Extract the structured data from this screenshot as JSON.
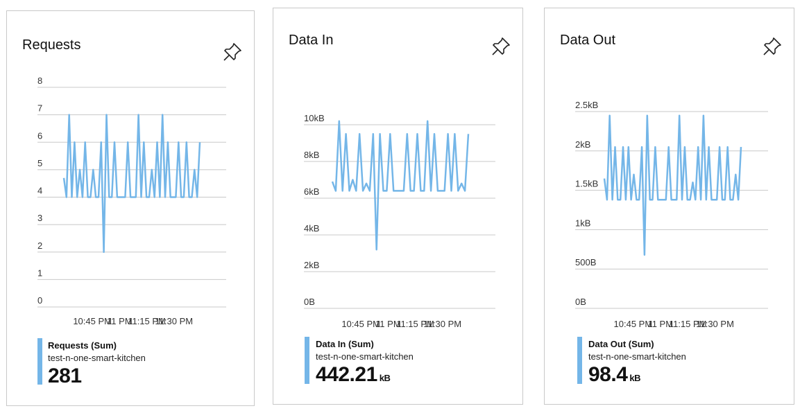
{
  "colors": {
    "series": "#74b6e8",
    "grid": "#c8c8c8",
    "tick": "#333333"
  },
  "pin_icon": "pin-icon",
  "chart_data": [
    {
      "type": "line",
      "title": "Requests",
      "x_ticks": [
        "10:45 PM",
        "11 PM",
        "11:15 PM",
        "11:30 PM"
      ],
      "y_ticks": [
        "0",
        "1",
        "2",
        "3",
        "4",
        "5",
        "6",
        "7",
        "8"
      ],
      "ylim": [
        0,
        8
      ],
      "series": [
        {
          "name": "Requests (Sum)",
          "values": [
            4.7,
            4,
            7,
            4,
            6,
            4,
            5,
            4,
            6,
            4,
            4,
            5,
            4,
            4,
            6,
            2,
            7,
            4,
            4,
            6,
            4,
            4,
            4,
            4,
            6,
            4,
            4,
            4,
            7,
            4,
            6,
            4,
            4,
            5,
            4,
            6,
            4,
            7,
            4,
            6,
            4,
            4,
            4,
            6,
            4,
            4,
            6,
            4,
            4,
            5,
            4,
            6
          ]
        }
      ],
      "legend": {
        "name": "Requests (Sum)",
        "resource": "test-n-one-smart-kitchen",
        "value": "281",
        "unit": ""
      }
    },
    {
      "type": "line",
      "title": "Data In",
      "x_ticks": [
        "10:45 PM",
        "11 PM",
        "11:15 PM",
        "11:30 PM"
      ],
      "y_ticks": [
        "0B",
        "2kB",
        "4kB",
        "6kB",
        "8kB",
        "10kB"
      ],
      "ylim": [
        0,
        10
      ],
      "series": [
        {
          "name": "Data In (Sum)",
          "values": [
            6.9,
            6.4,
            10.2,
            6.4,
            9.5,
            6.4,
            7,
            6.4,
            9.5,
            6.4,
            6.8,
            6.4,
            9.5,
            3.2,
            9.5,
            6.4,
            6.4,
            9.5,
            6.4,
            6.4,
            6.4,
            6.4,
            9.5,
            6.4,
            6.4,
            9.5,
            6.4,
            6.4,
            10.2,
            6.4,
            9.5,
            6.4,
            6.4,
            6.4,
            9.5,
            6.4,
            9.5,
            6.4,
            6.8,
            6.4,
            9.5
          ]
        }
      ],
      "legend": {
        "name": "Data In (Sum)",
        "resource": "test-n-one-smart-kitchen",
        "value": "442.21",
        "unit": "kB"
      }
    },
    {
      "type": "line",
      "title": "Data Out",
      "x_ticks": [
        "10:45 PM",
        "11 PM",
        "11:15 PM",
        "11:30 PM"
      ],
      "y_ticks": [
        "0B",
        "500B",
        "1kB",
        "1.5kB",
        "2kB",
        "2.5kB"
      ],
      "ylim": [
        0,
        2500
      ],
      "series": [
        {
          "name": "Data Out (Sum)",
          "values": [
            1650,
            1380,
            2450,
            1380,
            2050,
            1380,
            1380,
            2050,
            1380,
            2050,
            1380,
            1700,
            1380,
            1380,
            2050,
            680,
            2450,
            1380,
            1380,
            2050,
            1380,
            1380,
            1380,
            1380,
            2050,
            1380,
            1380,
            1380,
            2450,
            1380,
            2050,
            1380,
            1380,
            1600,
            1380,
            2050,
            1380,
            2450,
            1380,
            2050,
            1380,
            1380,
            1380,
            2050,
            1380,
            1380,
            2050,
            1380,
            1380,
            1700,
            1380,
            2050
          ]
        }
      ],
      "legend": {
        "name": "Data Out (Sum)",
        "resource": "test-n-one-smart-kitchen",
        "value": "98.4",
        "unit": "kB"
      }
    }
  ]
}
